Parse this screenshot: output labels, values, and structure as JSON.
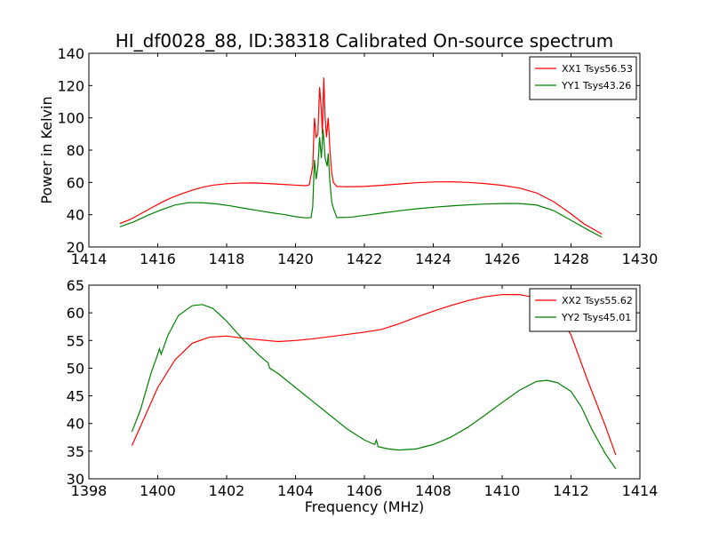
{
  "figure": {
    "title": "HI_df0028_88, ID:38318 Calibrated On-source spectrum"
  },
  "chart_data": [
    {
      "type": "line",
      "ylabel": "Power in Kelvin",
      "xlabel": "",
      "xlim": [
        1414,
        1430
      ],
      "ylim": [
        20,
        140
      ],
      "xticks": [
        1414,
        1416,
        1418,
        1420,
        1422,
        1424,
        1426,
        1428,
        1430
      ],
      "yticks": [
        20,
        40,
        60,
        80,
        100,
        120,
        140
      ],
      "legend_position": "top-right",
      "series": [
        {
          "name": "XX1 Tsys56.53",
          "color": "#ff0000",
          "points": [
            [
              1414.9,
              34.5
            ],
            [
              1415.2,
              37
            ],
            [
              1415.5,
              40.5
            ],
            [
              1415.8,
              44
            ],
            [
              1416.1,
              47.5
            ],
            [
              1416.4,
              50.5
            ],
            [
              1416.7,
              53
            ],
            [
              1417,
              55.2
            ],
            [
              1417.3,
              57
            ],
            [
              1417.6,
              58.3
            ],
            [
              1418,
              59.2
            ],
            [
              1418.4,
              59.6
            ],
            [
              1418.8,
              59.7
            ],
            [
              1419.2,
              59.3
            ],
            [
              1419.6,
              58.8
            ],
            [
              1420,
              58.3
            ],
            [
              1420.3,
              58
            ],
            [
              1420.4,
              58.5
            ],
            [
              1420.5,
              70
            ],
            [
              1420.55,
              100
            ],
            [
              1420.6,
              88
            ],
            [
              1420.65,
              90
            ],
            [
              1420.7,
              119
            ],
            [
              1420.75,
              105
            ],
            [
              1420.78,
              90
            ],
            [
              1420.82,
              125
            ],
            [
              1420.86,
              100
            ],
            [
              1420.9,
              88
            ],
            [
              1420.95,
              100
            ],
            [
              1421,
              80
            ],
            [
              1421.05,
              66
            ],
            [
              1421.1,
              60
            ],
            [
              1421.2,
              57.5
            ],
            [
              1421.5,
              57.3
            ],
            [
              1422,
              57.5
            ],
            [
              1422.5,
              58.2
            ],
            [
              1423,
              59
            ],
            [
              1423.5,
              59.8
            ],
            [
              1424,
              60.3
            ],
            [
              1424.5,
              60.4
            ],
            [
              1425,
              60
            ],
            [
              1425.5,
              59.3
            ],
            [
              1426,
              58.2
            ],
            [
              1426.5,
              56.5
            ],
            [
              1427,
              53.5
            ],
            [
              1427.5,
              48
            ],
            [
              1428,
              40.5
            ],
            [
              1428.4,
              34
            ],
            [
              1428.9,
              28
            ]
          ]
        },
        {
          "name": "YY1 Tsys43.26",
          "color": "#008000",
          "points": [
            [
              1414.9,
              32.5
            ],
            [
              1415.3,
              35.5
            ],
            [
              1415.7,
              39.5
            ],
            [
              1416.1,
              43
            ],
            [
              1416.5,
              46
            ],
            [
              1416.9,
              47.5
            ],
            [
              1417.3,
              47.4
            ],
            [
              1417.7,
              46.7
            ],
            [
              1418.1,
              45.5
            ],
            [
              1418.5,
              44
            ],
            [
              1418.9,
              42.6
            ],
            [
              1419.3,
              41.2
            ],
            [
              1419.7,
              40
            ],
            [
              1420,
              38.8
            ],
            [
              1420.3,
              38
            ],
            [
              1420.45,
              38.2
            ],
            [
              1420.5,
              45
            ],
            [
              1420.55,
              74
            ],
            [
              1420.6,
              62
            ],
            [
              1420.65,
              70
            ],
            [
              1420.7,
              88
            ],
            [
              1420.75,
              75
            ],
            [
              1420.8,
              93
            ],
            [
              1420.86,
              75
            ],
            [
              1420.92,
              70
            ],
            [
              1420.95,
              78
            ],
            [
              1421,
              60
            ],
            [
              1421.05,
              48
            ],
            [
              1421.1,
              44
            ],
            [
              1421.2,
              38.2
            ],
            [
              1421.6,
              38.4
            ],
            [
              1422,
              39.5
            ],
            [
              1422.5,
              41
            ],
            [
              1423,
              42.4
            ],
            [
              1423.5,
              43.6
            ],
            [
              1424,
              44.6
            ],
            [
              1424.5,
              45.4
            ],
            [
              1425,
              46.1
            ],
            [
              1425.5,
              46.6
            ],
            [
              1426,
              46.9
            ],
            [
              1426.5,
              46.9
            ],
            [
              1427,
              46
            ],
            [
              1427.5,
              42.5
            ],
            [
              1428,
              36.5
            ],
            [
              1428.5,
              30.5
            ],
            [
              1428.9,
              26
            ]
          ]
        }
      ]
    },
    {
      "type": "line",
      "ylabel": "",
      "xlabel": "Frequency (MHz)",
      "xlim": [
        1398,
        1414
      ],
      "ylim": [
        30,
        65
      ],
      "xticks": [
        1398,
        1400,
        1402,
        1404,
        1406,
        1408,
        1410,
        1412,
        1414
      ],
      "yticks": [
        30,
        35,
        40,
        45,
        50,
        55,
        60,
        65
      ],
      "legend_position": "top-right",
      "series": [
        {
          "name": "XX2 Tsys55.62",
          "color": "#ff0000",
          "points": [
            [
              1399.25,
              36
            ],
            [
              1399.5,
              39.5
            ],
            [
              1400,
              46.5
            ],
            [
              1400.5,
              51.5
            ],
            [
              1401,
              54.5
            ],
            [
              1401.5,
              55.6
            ],
            [
              1402,
              55.8
            ],
            [
              1402.5,
              55.4
            ],
            [
              1403,
              55.1
            ],
            [
              1403.5,
              54.8
            ],
            [
              1404,
              55
            ],
            [
              1404.5,
              55.3
            ],
            [
              1405,
              55.7
            ],
            [
              1405.5,
              56.1
            ],
            [
              1406,
              56.5
            ],
            [
              1406.5,
              57
            ],
            [
              1407,
              58
            ],
            [
              1407.5,
              59.2
            ],
            [
              1408,
              60.3
            ],
            [
              1408.5,
              61.3
            ],
            [
              1409,
              62.2
            ],
            [
              1409.5,
              62.9
            ],
            [
              1410,
              63.3
            ],
            [
              1410.5,
              63.3
            ],
            [
              1411,
              62.7
            ],
            [
              1411.5,
              61
            ],
            [
              1412,
              56
            ],
            [
              1412.5,
              47.5
            ],
            [
              1413,
              39.5
            ],
            [
              1413.3,
              34.3
            ]
          ]
        },
        {
          "name": "YY2 Tsys45.01",
          "color": "#008000",
          "points": [
            [
              1399.25,
              38.5
            ],
            [
              1399.5,
              42.5
            ],
            [
              1399.8,
              49
            ],
            [
              1400,
              52.5
            ],
            [
              1400.05,
              53.5
            ],
            [
              1400.1,
              52.5
            ],
            [
              1400.3,
              56
            ],
            [
              1400.6,
              59.5
            ],
            [
              1401,
              61.3
            ],
            [
              1401.3,
              61.5
            ],
            [
              1401.6,
              60.8
            ],
            [
              1402,
              58.5
            ],
            [
              1402.5,
              55
            ],
            [
              1403,
              52
            ],
            [
              1403.2,
              51
            ],
            [
              1403.25,
              50
            ],
            [
              1403.5,
              49
            ],
            [
              1404,
              46.5
            ],
            [
              1404.5,
              44
            ],
            [
              1405,
              41.5
            ],
            [
              1405.5,
              39
            ],
            [
              1406,
              37
            ],
            [
              1406.3,
              36.2
            ],
            [
              1406.35,
              37
            ],
            [
              1406.4,
              35.8
            ],
            [
              1406.7,
              35.4
            ],
            [
              1407,
              35.2
            ],
            [
              1407.5,
              35.4
            ],
            [
              1408,
              36.2
            ],
            [
              1408.5,
              37.5
            ],
            [
              1409,
              39.3
            ],
            [
              1409.5,
              41.5
            ],
            [
              1410,
              43.8
            ],
            [
              1410.5,
              46
            ],
            [
              1411,
              47.6
            ],
            [
              1411.3,
              47.8
            ],
            [
              1411.6,
              47.4
            ],
            [
              1412,
              45.8
            ],
            [
              1412.3,
              43
            ],
            [
              1412.6,
              39
            ],
            [
              1413,
              34.5
            ],
            [
              1413.3,
              31.8
            ]
          ]
        }
      ]
    }
  ]
}
